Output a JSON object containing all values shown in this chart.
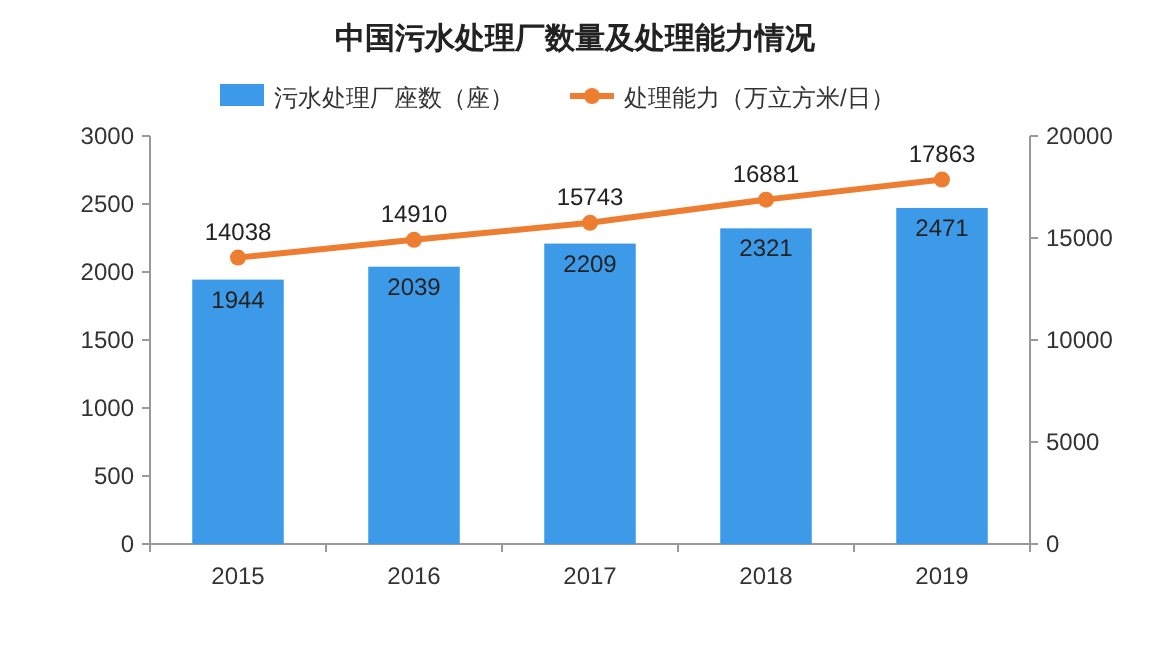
{
  "chart_data": {
    "type": "bar",
    "title": "中国污水处理厂数量及处理能力情况",
    "categories": [
      "2015",
      "2016",
      "2017",
      "2018",
      "2019"
    ],
    "series": [
      {
        "name": "污水处理厂座数（座）",
        "color": "#3d9ae8",
        "values": [
          1944,
          2039,
          2209,
          2321,
          2471
        ]
      },
      {
        "name": "处理能力（万立方米/日）",
        "type": "line",
        "axis": "y2",
        "color": "#ed7d31",
        "values": [
          14038,
          14910,
          15743,
          16881,
          17863
        ]
      }
    ],
    "ylim": [
      0,
      3000
    ],
    "yticks": [
      0,
      500,
      1000,
      1500,
      2000,
      2500,
      3000
    ],
    "y2lim": [
      0,
      20000
    ],
    "y2ticks": [
      0,
      5000,
      10000,
      15000,
      20000
    ],
    "data_labels": true,
    "legend": "top",
    "grid": false,
    "marker": "circle",
    "line_style": "solid"
  }
}
